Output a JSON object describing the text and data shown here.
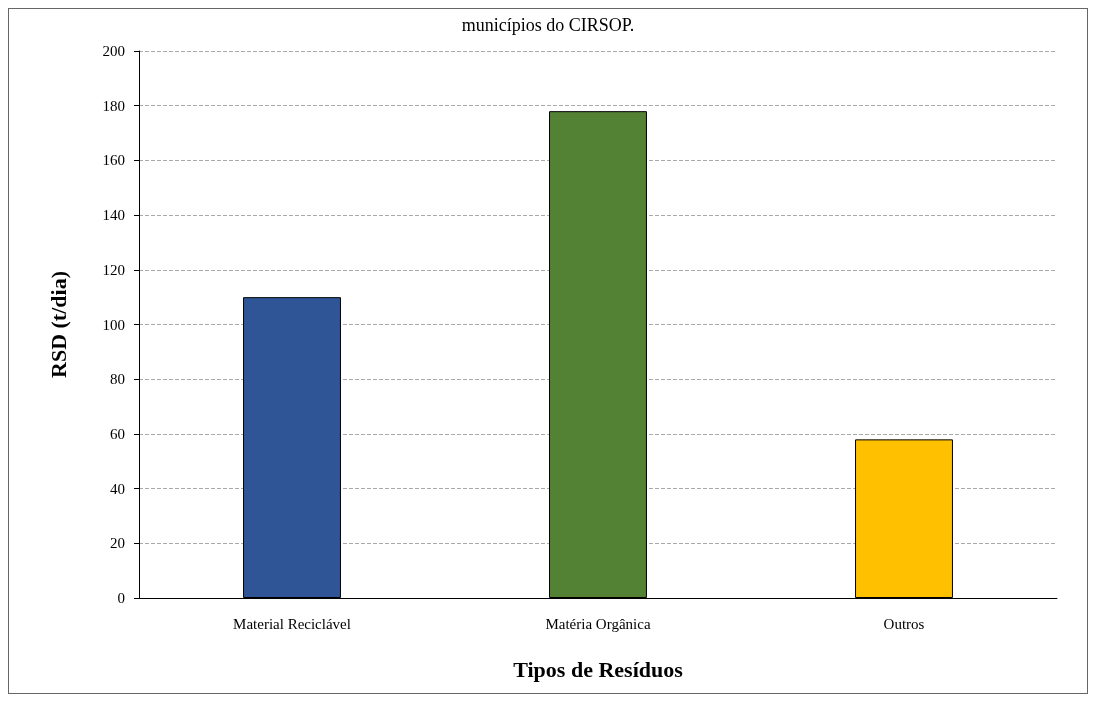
{
  "chart_data": {
    "type": "bar",
    "title": "municípios do CIRSOP.",
    "xlabel": "Tipos de Resíduos",
    "ylabel": "RSD (t/dia)",
    "categories": [
      "Material Reciclável",
      "Matéria Orgânica",
      "Outros"
    ],
    "values": [
      110,
      178,
      58
    ],
    "colors": [
      "#2f5597",
      "#548235",
      "#ffc000"
    ],
    "ylim": [
      0,
      200
    ],
    "yticks": [
      0,
      20,
      40,
      60,
      80,
      100,
      120,
      140,
      160,
      180,
      200
    ],
    "grid": "y"
  }
}
